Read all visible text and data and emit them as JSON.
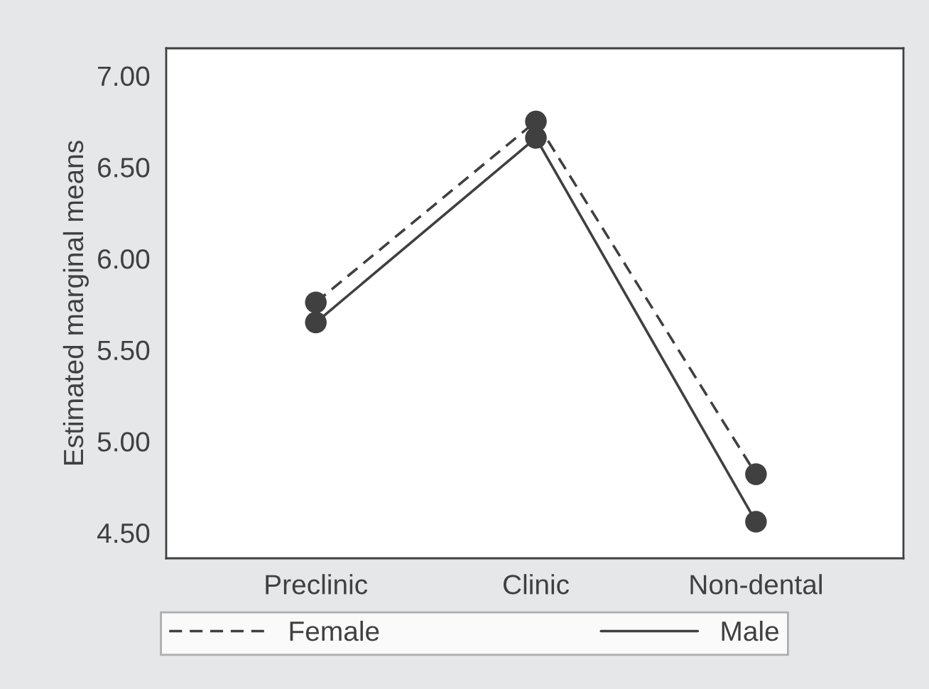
{
  "chart_data": {
    "type": "line",
    "ylabel": "Estimated marginal means",
    "categories": [
      "Preclinic",
      "Clinic",
      "Non-dental"
    ],
    "series": [
      {
        "name": "Female",
        "color": "#404040",
        "line_style": "dashed",
        "values": [
          5.76,
          6.75,
          4.82
        ]
      },
      {
        "name": "Male",
        "color": "#404040",
        "line_style": "solid",
        "values": [
          5.65,
          6.66,
          4.56
        ]
      }
    ],
    "ylim": [
      4.36,
      7.15
    ],
    "yticks": [
      {
        "value": 4.5,
        "label": "4.50"
      },
      {
        "value": 5.0,
        "label": "5.00"
      },
      {
        "value": 5.5,
        "label": "5.50"
      },
      {
        "value": 6.0,
        "label": "6.00"
      },
      {
        "value": 6.5,
        "label": "6.50"
      },
      {
        "value": 7.0,
        "label": "7.00"
      }
    ],
    "marker": "circle",
    "grid": false,
    "legend": "bottom"
  }
}
